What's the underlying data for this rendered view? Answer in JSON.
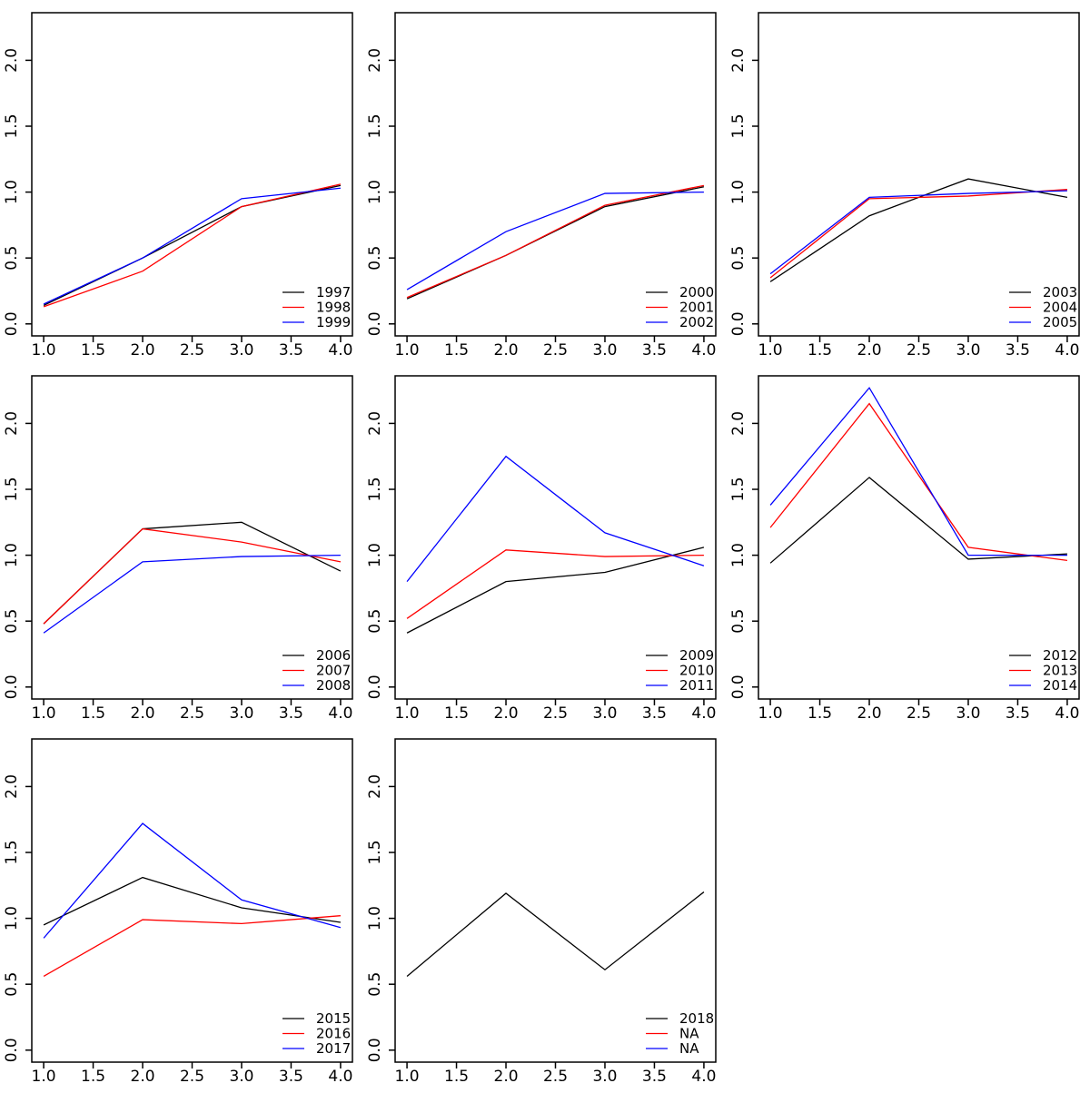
{
  "chart_data": {
    "type": "line",
    "layout": "3x3-grid-of-panels",
    "x": [
      1,
      2,
      3,
      4
    ],
    "xlim": [
      0.88,
      4.12
    ],
    "ylim": [
      -0.091,
      2.361
    ],
    "xticks": [
      1.0,
      1.5,
      2.0,
      2.5,
      3.0,
      3.5,
      4.0
    ],
    "xtick_labels": [
      "1.0",
      "1.5",
      "2.0",
      "2.5",
      "3.0",
      "3.5",
      "4.0"
    ],
    "yticks": [
      0.0,
      0.5,
      1.0,
      1.5,
      2.0
    ],
    "ytick_labels": [
      "0.0",
      "0.5",
      "1.0",
      "1.5",
      "2.0"
    ],
    "xlabel": "",
    "ylabel": "",
    "title": "",
    "grid": false,
    "legend_position": "bottom-right",
    "axis_color": "#000000",
    "background_color": "#ffffff",
    "series_colors": {
      "first": "#000000",
      "second": "#ff0000",
      "third": "#0000ff"
    },
    "panels": [
      {
        "series": [
          {
            "name": "1997",
            "color": "#000000",
            "values": [
              0.14,
              0.5,
              0.89,
              1.05
            ]
          },
          {
            "name": "1998",
            "color": "#ff0000",
            "values": [
              0.13,
              0.4,
              0.89,
              1.06
            ]
          },
          {
            "name": "1999",
            "color": "#0000ff",
            "values": [
              0.15,
              0.5,
              0.95,
              1.03
            ]
          }
        ]
      },
      {
        "series": [
          {
            "name": "2000",
            "color": "#000000",
            "values": [
              0.19,
              0.52,
              0.89,
              1.04
            ]
          },
          {
            "name": "2001",
            "color": "#ff0000",
            "values": [
              0.2,
              0.52,
              0.9,
              1.05
            ]
          },
          {
            "name": "2002",
            "color": "#0000ff",
            "values": [
              0.26,
              0.7,
              0.99,
              1.0
            ]
          }
        ]
      },
      {
        "series": [
          {
            "name": "2003",
            "color": "#000000",
            "values": [
              0.32,
              0.82,
              1.1,
              0.96
            ]
          },
          {
            "name": "2004",
            "color": "#ff0000",
            "values": [
              0.35,
              0.95,
              0.97,
              1.02
            ]
          },
          {
            "name": "2005",
            "color": "#0000ff",
            "values": [
              0.38,
              0.96,
              0.99,
              1.01
            ]
          }
        ]
      },
      {
        "series": [
          {
            "name": "2006",
            "color": "#000000",
            "values": [
              0.48,
              1.2,
              1.25,
              0.88
            ]
          },
          {
            "name": "2007",
            "color": "#ff0000",
            "values": [
              0.48,
              1.2,
              1.1,
              0.95
            ]
          },
          {
            "name": "2008",
            "color": "#0000ff",
            "values": [
              0.41,
              0.95,
              0.99,
              1.0
            ]
          }
        ]
      },
      {
        "series": [
          {
            "name": "2009",
            "color": "#000000",
            "values": [
              0.41,
              0.8,
              0.87,
              1.06
            ]
          },
          {
            "name": "2010",
            "color": "#ff0000",
            "values": [
              0.52,
              1.04,
              0.99,
              1.0
            ]
          },
          {
            "name": "2011",
            "color": "#0000ff",
            "values": [
              0.8,
              1.75,
              1.17,
              0.92
            ]
          }
        ]
      },
      {
        "series": [
          {
            "name": "2012",
            "color": "#000000",
            "values": [
              0.94,
              1.59,
              0.97,
              1.01
            ]
          },
          {
            "name": "2013",
            "color": "#ff0000",
            "values": [
              1.21,
              2.15,
              1.06,
              0.96
            ]
          },
          {
            "name": "2014",
            "color": "#0000ff",
            "values": [
              1.38,
              2.27,
              1.0,
              1.0
            ]
          }
        ]
      },
      {
        "series": [
          {
            "name": "2015",
            "color": "#000000",
            "values": [
              0.95,
              1.31,
              1.08,
              0.97
            ]
          },
          {
            "name": "2016",
            "color": "#ff0000",
            "values": [
              0.56,
              0.99,
              0.96,
              1.02
            ]
          },
          {
            "name": "2017",
            "color": "#0000ff",
            "values": [
              0.85,
              1.72,
              1.14,
              0.93
            ]
          }
        ]
      },
      {
        "series": [
          {
            "name": "2018",
            "color": "#000000",
            "values": [
              0.56,
              1.19,
              0.61,
              1.2
            ]
          },
          {
            "name": "NA",
            "color": "#ff0000",
            "values": null
          },
          {
            "name": "NA",
            "color": "#0000ff",
            "values": null
          }
        ]
      }
    ]
  }
}
